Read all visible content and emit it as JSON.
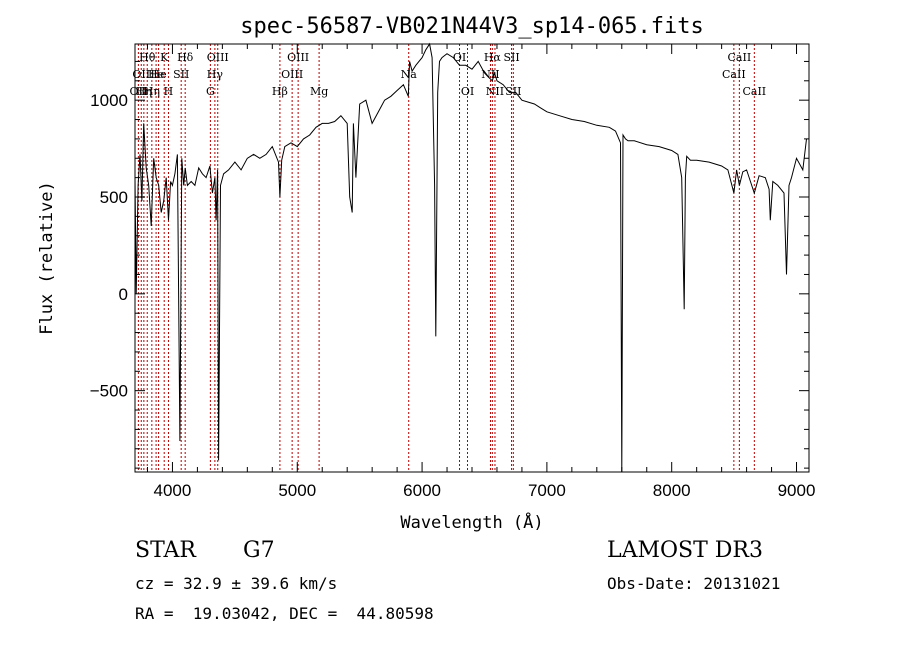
{
  "chart_data": {
    "type": "line",
    "title": "spec-56587-VB021N44V3_sp14-065.fits",
    "xlabel": "Wavelength (Å)",
    "ylabel": "Flux (relative)",
    "xlim": [
      3700,
      9100
    ],
    "ylim": [
      -920,
      1290
    ],
    "xticks": [
      4000,
      5000,
      6000,
      7000,
      8000,
      9000
    ],
    "xtick_labels": [
      "4000",
      "5000",
      "6000",
      "7000",
      "8000",
      "9000"
    ],
    "yticks": [
      -500,
      0,
      500,
      1000
    ],
    "ytick_labels": [
      "−500",
      "0",
      "500",
      "1000"
    ],
    "series": [
      {
        "name": "spectrum",
        "x": [
          3700,
          3710,
          3725,
          3740,
          3755,
          3770,
          3790,
          3810,
          3830,
          3850,
          3870,
          3890,
          3910,
          3930,
          3950,
          3968,
          3985,
          4000,
          4020,
          4040,
          4060,
          4075,
          4090,
          4102,
          4120,
          4150,
          4180,
          4210,
          4240,
          4270,
          4300,
          4320,
          4340,
          4350,
          4362,
          4370,
          4385,
          4410,
          4450,
          4500,
          4550,
          4600,
          4650,
          4700,
          4750,
          4800,
          4850,
          4861,
          4875,
          4900,
          4950,
          5000,
          5050,
          5100,
          5150,
          5200,
          5250,
          5300,
          5350,
          5400,
          5420,
          5440,
          5450,
          5470,
          5500,
          5550,
          5600,
          5650,
          5700,
          5750,
          5800,
          5850,
          5890,
          5900,
          5920,
          5950,
          6000,
          6030,
          6060,
          6080,
          6100,
          6110,
          6125,
          6140,
          6160,
          6180,
          6200,
          6250,
          6300,
          6350,
          6400,
          6450,
          6500,
          6530,
          6563,
          6580,
          6600,
          6650,
          6700,
          6750,
          6800,
          6850,
          6900,
          6950,
          7000,
          7100,
          7200,
          7300,
          7400,
          7500,
          7550,
          7590,
          7600,
          7610,
          7630,
          7650,
          7700,
          7800,
          7900,
          8000,
          8050,
          8080,
          8100,
          8110,
          8120,
          8150,
          8200,
          8300,
          8400,
          8450,
          8498,
          8520,
          8542,
          8570,
          8600,
          8662,
          8700,
          8750,
          8780,
          8790,
          8810,
          8850,
          8900,
          8920,
          8940,
          8960,
          9000,
          9050,
          9080
        ],
        "y": [
          600,
          0,
          560,
          720,
          480,
          880,
          650,
          560,
          350,
          700,
          600,
          560,
          420,
          480,
          600,
          380,
          580,
          560,
          620,
          720,
          -760,
          700,
          560,
          650,
          560,
          580,
          560,
          650,
          620,
          600,
          660,
          520,
          600,
          380,
          640,
          -860,
          560,
          620,
          640,
          680,
          640,
          700,
          720,
          700,
          720,
          760,
          680,
          500,
          690,
          760,
          780,
          760,
          800,
          820,
          860,
          880,
          880,
          890,
          920,
          880,
          500,
          420,
          880,
          600,
          980,
          1000,
          880,
          940,
          1000,
          1020,
          1050,
          1080,
          1020,
          1200,
          1150,
          1180,
          1220,
          1260,
          1300,
          1220,
          560,
          -220,
          1040,
          1200,
          1220,
          1230,
          1240,
          1220,
          1180,
          1180,
          1160,
          1200,
          1140,
          1120,
          1100,
          1140,
          1100,
          1080,
          1040,
          1040,
          1000,
          990,
          980,
          960,
          940,
          920,
          900,
          890,
          870,
          860,
          840,
          780,
          -920,
          820,
          800,
          790,
          790,
          770,
          760,
          740,
          720,
          600,
          -80,
          600,
          710,
          690,
          690,
          680,
          660,
          640,
          520,
          640,
          560,
          630,
          640,
          520,
          610,
          600,
          540,
          380,
          580,
          560,
          520,
          100,
          560,
          600,
          700,
          640,
          800
        ]
      }
    ],
    "lines": [
      {
        "wl": 3727,
        "label": "OII",
        "row": 3
      },
      {
        "wl": 3750,
        "label": "OII",
        "row": 2
      },
      {
        "wl": 3771,
        "label": "Hη",
        "row": 3
      },
      {
        "wl": 3798,
        "label": "Hθ",
        "row": 1
      },
      {
        "wl": 3835,
        "label": "Hη",
        "row": 3
      },
      {
        "wl": 3869,
        "label": "He",
        "row": 2
      },
      {
        "wl": 3889,
        "label": "He",
        "row": 2
      },
      {
        "wl": 3934,
        "label": "K",
        "row": 1
      },
      {
        "wl": 3968,
        "label": "H",
        "row": 3
      },
      {
        "wl": 4070,
        "label": "SII",
        "row": 2
      },
      {
        "wl": 4102,
        "label": "Hδ",
        "row": 1
      },
      {
        "wl": 4304,
        "label": "G",
        "row": 3
      },
      {
        "wl": 4340,
        "label": "Hγ",
        "row": 2
      },
      {
        "wl": 4363,
        "label": "OIII",
        "row": 1
      },
      {
        "wl": 4861,
        "label": "Hβ",
        "row": 3
      },
      {
        "wl": 4959,
        "label": "OIII",
        "row": 2
      },
      {
        "wl": 5007,
        "label": "OIII",
        "row": 1
      },
      {
        "wl": 5175,
        "label": "Mg",
        "row": 3
      },
      {
        "wl": 5893,
        "label": "Na",
        "row": 2
      },
      {
        "wl": 6300,
        "label": "OI",
        "row": 1
      },
      {
        "wl": 6364,
        "label": "OI",
        "row": 3
      },
      {
        "wl": 6548,
        "label": "NII",
        "row": 2
      },
      {
        "wl": 6563,
        "label": "Hα",
        "row": 1
      },
      {
        "wl": 6584,
        "label": "NII",
        "row": 3
      },
      {
        "wl": 6717,
        "label": "SII",
        "row": 1
      },
      {
        "wl": 6731,
        "label": "SII",
        "row": 3
      },
      {
        "wl": 8498,
        "label": "CaII",
        "row": 2
      },
      {
        "wl": 8542,
        "label": "CaII",
        "row": 1
      },
      {
        "wl": 8662,
        "label": "CaII",
        "row": 3
      }
    ],
    "grid": false,
    "line_color": "#000000",
    "marker_color": "#b30000"
  },
  "info": {
    "object_class": "STAR",
    "subclass": "G7",
    "survey": "LAMOST DR3",
    "cz": "cz = 32.9 ± 39.6 km/s",
    "obs_date": "Obs-Date: 20131021",
    "coords": "RA =  19.03042, DEC =  44.80598"
  }
}
